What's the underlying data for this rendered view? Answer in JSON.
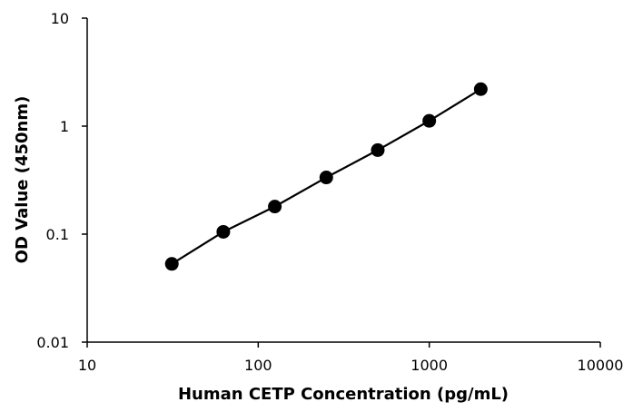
{
  "chart_data": {
    "type": "scatter",
    "title": "",
    "xlabel": "Human CETP Concentration  (pg/mL)",
    "ylabel": "OD Value (450nm)",
    "x_scale": "log",
    "y_scale": "log",
    "xlim": [
      10,
      10000
    ],
    "ylim": [
      0.01,
      10
    ],
    "x_ticks": [
      "10",
      "100",
      "1000",
      "10000"
    ],
    "y_ticks": [
      "0.01",
      "0.1",
      "1",
      "10"
    ],
    "grid": false,
    "legend": "none",
    "line_connected": true,
    "marker": "filled-circle",
    "color": "#000000",
    "series": [
      {
        "x": [
          31.25,
          62.5,
          125,
          250,
          500,
          1000,
          2000
        ],
        "y": [
          0.053,
          0.105,
          0.18,
          0.335,
          0.6,
          1.12,
          2.2
        ]
      }
    ]
  }
}
